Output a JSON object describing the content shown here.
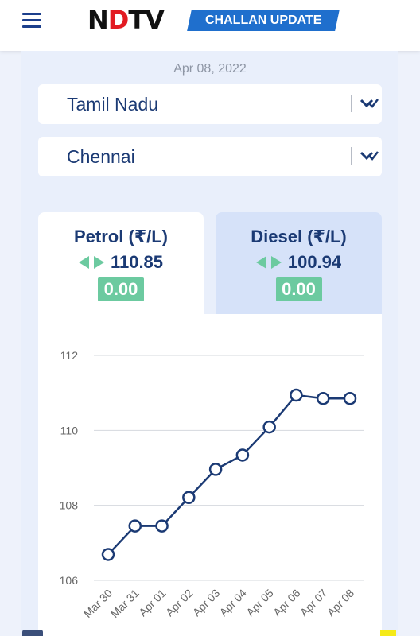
{
  "header": {
    "logo_prefix": "N",
    "logo_dot": "D",
    "logo_suffix": "TV",
    "badge": "CHALLAN UPDATE"
  },
  "date": "Apr 08, 2022",
  "state_select": {
    "value": "Tamil Nadu"
  },
  "city_select": {
    "value": "Chennai"
  },
  "tabs": [
    {
      "title": "Petrol (₹/L)",
      "price": "110.85",
      "change": "0.00",
      "active": true
    },
    {
      "title": "Diesel (₹/L)",
      "price": "100.94",
      "change": "0.00",
      "active": false
    }
  ],
  "colors": {
    "accent": "#1b3a74",
    "badge": "#1f6fcd",
    "change_badge": "#6ccaa0",
    "arrows": "#6ccaa0"
  },
  "chart_data": {
    "type": "line",
    "x": [
      "Mar 30",
      "Mar 31",
      "Apr 01",
      "Apr 02",
      "Apr 03",
      "Apr 04",
      "Apr 05",
      "Apr 06",
      "Apr 07",
      "Apr 08"
    ],
    "series": [
      {
        "values": [
          106.69,
          107.45,
          107.45,
          108.21,
          108.96,
          109.34,
          110.09,
          110.94,
          110.85,
          110.85
        ]
      }
    ],
    "ylim": [
      106,
      112
    ],
    "yticks": [
      106,
      108,
      110,
      112
    ],
    "grid": true,
    "color": "#1b3a74"
  }
}
